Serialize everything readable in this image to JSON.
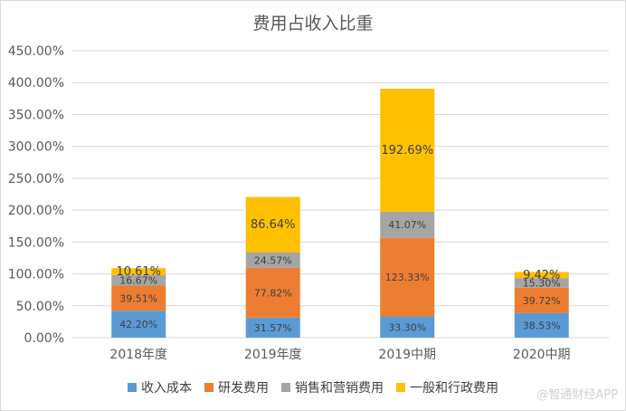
{
  "chart_data": {
    "type": "bar",
    "stacked": true,
    "title": "费用占收入比重",
    "categories": [
      "2018年度",
      "2019年度",
      "2019中期",
      "2020中期"
    ],
    "series": [
      {
        "name": "收入成本",
        "color": "#5b9bd5",
        "values": [
          42.2,
          31.57,
          33.3,
          38.53
        ],
        "labels": [
          "42.20%",
          "31.57%",
          "33.30%",
          "38.53%"
        ]
      },
      {
        "name": "研发费用",
        "color": "#ed7d31",
        "values": [
          39.51,
          77.82,
          123.33,
          39.72
        ],
        "labels": [
          "39.51%",
          "77.82%",
          "123.33%",
          "39.72%"
        ]
      },
      {
        "name": "销售和营销费用",
        "color": "#a5a5a5",
        "values": [
          16.67,
          24.57,
          41.07,
          15.3
        ],
        "labels": [
          "16.67%",
          "24.57%",
          "41.07%",
          "15.30%"
        ]
      },
      {
        "name": "一般和行政费用",
        "color": "#ffc000",
        "values": [
          10.61,
          86.64,
          192.69,
          9.42
        ],
        "labels": [
          "10.61%",
          "86.64%",
          "192.69%",
          "9.42%"
        ]
      }
    ],
    "ylim": [
      0,
      450
    ],
    "yticks": [
      "0.00%",
      "50.00%",
      "100.00%",
      "150.00%",
      "200.00%",
      "250.00%",
      "300.00%",
      "350.00%",
      "400.00%",
      "450.00%"
    ],
    "grid": true,
    "legend_position": "bottom"
  },
  "watermark": "@智通财经APP"
}
